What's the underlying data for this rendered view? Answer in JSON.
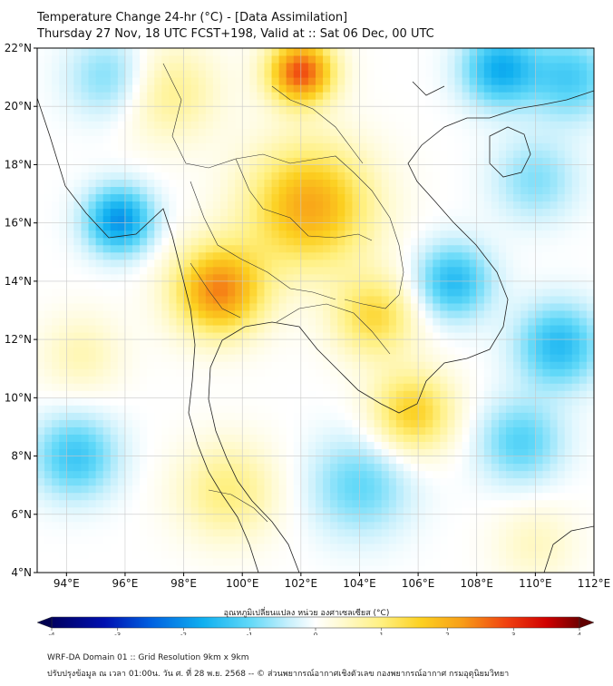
{
  "header": {
    "title": "Temperature Change 24-hr (°C) - [Data Assimilation]",
    "subtitle": "Thursday 27 Nov, 18 UTC FCST+198, Valid at :: Sat 06 Dec, 00 UTC"
  },
  "map": {
    "lat_ticks": [
      "22°N",
      "20°N",
      "18°N",
      "16°N",
      "14°N",
      "12°N",
      "10°N",
      "8°N",
      "6°N",
      "4°N"
    ],
    "lon_ticks": [
      "94°E",
      "96°E",
      "98°E",
      "100°E",
      "102°E",
      "104°E",
      "106°E",
      "108°E",
      "110°E",
      "112°E"
    ],
    "lat_range": [
      4,
      22
    ],
    "lon_range": [
      93,
      112
    ],
    "grid": true,
    "hotspots": [
      {
        "lon": 102,
        "lat": 21.2,
        "value": 2.8,
        "spread": 0.8
      },
      {
        "lon": 99.2,
        "lat": 13.7,
        "value": 2.4,
        "spread": 1.1
      },
      {
        "lon": 102.3,
        "lat": 16.6,
        "value": 2.1,
        "spread": 1.5
      },
      {
        "lon": 105.8,
        "lat": 9.5,
        "value": 1.6,
        "spread": 1.0
      },
      {
        "lon": 97.5,
        "lat": 20.5,
        "value": 0.9,
        "spread": 1.2
      },
      {
        "lon": 99.5,
        "lat": 6.8,
        "value": 1.0,
        "spread": 1.2
      },
      {
        "lon": 104.5,
        "lat": 12.8,
        "value": 1.4,
        "spread": 1.0
      },
      {
        "lon": 95.8,
        "lat": 16.1,
        "value": -2.0,
        "spread": 0.8
      },
      {
        "lon": 107.2,
        "lat": 14.0,
        "value": -1.5,
        "spread": 0.9
      },
      {
        "lon": 110.8,
        "lat": 11.8,
        "value": -1.5,
        "spread": 1.0
      },
      {
        "lon": 108.8,
        "lat": 21.3,
        "value": -1.7,
        "spread": 0.9
      },
      {
        "lon": 111.2,
        "lat": 21.0,
        "value": -1.2,
        "spread": 1.0
      },
      {
        "lon": 95.5,
        "lat": 21.0,
        "value": -0.9,
        "spread": 1.0
      },
      {
        "lon": 94.3,
        "lat": 8.0,
        "value": -1.3,
        "spread": 1.0
      },
      {
        "lon": 104.0,
        "lat": 7.0,
        "value": -1.0,
        "spread": 1.2
      },
      {
        "lon": 109.5,
        "lat": 8.5,
        "value": -1.1,
        "spread": 1.0
      },
      {
        "lon": 110.0,
        "lat": 17.5,
        "value": -0.8,
        "spread": 1.0
      },
      {
        "lon": 94.5,
        "lat": 11.5,
        "value": 0.6,
        "spread": 1.0
      },
      {
        "lon": 110.0,
        "lat": 5.0,
        "value": 0.5,
        "spread": 1.0
      }
    ]
  },
  "colorbar": {
    "label": "อุณหภูมิเปลี่ยนแปลง หน่วย องศาเซลเซียส (°C)",
    "ticks": [
      "-4",
      "-3",
      "-2",
      "-1",
      "0",
      "1",
      "2",
      "3",
      "4"
    ],
    "min": -4,
    "max": 4,
    "stops": [
      {
        "v": -4,
        "color": "#000060"
      },
      {
        "v": -3.2,
        "color": "#0010b0"
      },
      {
        "v": -2.5,
        "color": "#0060e0"
      },
      {
        "v": -1.7,
        "color": "#10b0f0"
      },
      {
        "v": -1.0,
        "color": "#60d8f8"
      },
      {
        "v": -0.4,
        "color": "#c8f0fc"
      },
      {
        "v": 0,
        "color": "#ffffff"
      },
      {
        "v": 0.4,
        "color": "#fffad0"
      },
      {
        "v": 1.0,
        "color": "#fff080"
      },
      {
        "v": 1.6,
        "color": "#fcd020"
      },
      {
        "v": 2.2,
        "color": "#f8a018"
      },
      {
        "v": 2.9,
        "color": "#f04010"
      },
      {
        "v": 3.5,
        "color": "#d00000"
      },
      {
        "v": 4,
        "color": "#700000"
      }
    ]
  },
  "footer": {
    "line1": "WRF-DA Domain 01 :: Grid Resolution 9km x 9km",
    "line2": "ปรับปรุงข้อมูล ณ เวลา 01:00น. วัน ศ. ที่ 28 พ.ย. 2568 -- © ส่วนพยากรณ์อากาศเชิงตัวเลข กองพยากรณ์อากาศ กรมอุตุนิยมวิทยา"
  }
}
